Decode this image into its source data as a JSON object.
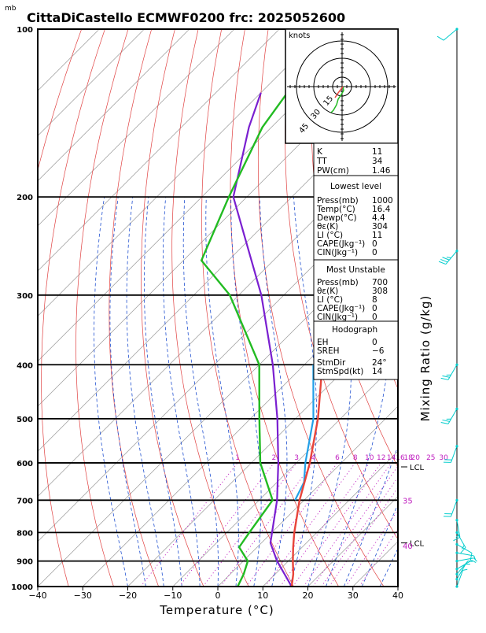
{
  "header": {
    "units_label": "mb",
    "title": "CittaDiCastello ECMWF0200 frc: 2025052600"
  },
  "chart_data": {
    "type": "skew-t",
    "xlabel": "Temperature (°C)",
    "ylabel_right": "Mixing Ratio (g/kg)",
    "x_ticks": [
      "−40",
      "−30",
      "−20",
      "−10",
      "0",
      "10",
      "20",
      "30",
      "40"
    ],
    "x_tick_values": [
      -40,
      -30,
      -20,
      -10,
      0,
      10,
      20,
      30,
      40
    ],
    "p_ticks": [
      "100",
      "200",
      "300",
      "400",
      "500",
      "600",
      "700",
      "800",
      "900",
      "1000"
    ],
    "p_tick_values": [
      100,
      200,
      300,
      400,
      500,
      600,
      700,
      800,
      900,
      1000
    ],
    "xlim": [
      -40,
      40
    ],
    "plim": [
      1000,
      100
    ],
    "mixing_ratio_labels": [
      "1",
      "2",
      "3",
      "4",
      "6",
      "8",
      "10",
      "12",
      "14",
      "16",
      "18",
      "20",
      "25",
      "30"
    ],
    "mixing_ratio_values": [
      1,
      2,
      3,
      4,
      6,
      8,
      10,
      12,
      14,
      16,
      18,
      20,
      25,
      30
    ],
    "temperature_profile": [
      {
        "p": 1000,
        "t": 16.4
      },
      {
        "p": 950,
        "t": 14
      },
      {
        "p": 900,
        "t": 11
      },
      {
        "p": 850,
        "t": 8
      },
      {
        "p": 800,
        "t": 5
      },
      {
        "p": 700,
        "t": -1
      },
      {
        "p": 600,
        "t": -7
      },
      {
        "p": 500,
        "t": -15
      },
      {
        "p": 400,
        "t": -26
      },
      {
        "p": 300,
        "t": -40
      },
      {
        "p": 250,
        "t": -50
      },
      {
        "p": 200,
        "t": -52
      },
      {
        "p": 150,
        "t": -54
      },
      {
        "p": 100,
        "t": -57
      }
    ],
    "dewpoint_profile": [
      {
        "p": 1000,
        "t": 4.4
      },
      {
        "p": 950,
        "t": 3
      },
      {
        "p": 900,
        "t": 1
      },
      {
        "p": 850,
        "t": -4
      },
      {
        "p": 800,
        "t": -5
      },
      {
        "p": 700,
        "t": -7
      },
      {
        "p": 600,
        "t": -18
      },
      {
        "p": 500,
        "t": -28
      },
      {
        "p": 400,
        "t": -40
      },
      {
        "p": 300,
        "t": -62
      },
      {
        "p": 260,
        "t": -76
      },
      {
        "p": 200,
        "t": -84
      },
      {
        "p": 150,
        "t": -92
      },
      {
        "p": 100,
        "t": -98
      }
    ],
    "parcel_profile": [
      {
        "p": 1000,
        "t": 16.4
      },
      {
        "p": 900,
        "t": 7.5
      },
      {
        "p": 835,
        "t": 2
      },
      {
        "p": 700,
        "t": -6
      },
      {
        "p": 600,
        "t": -14
      },
      {
        "p": 500,
        "t": -24
      },
      {
        "p": 400,
        "t": -37
      },
      {
        "p": 300,
        "t": -55
      },
      {
        "p": 200,
        "t": -83
      },
      {
        "p": 150,
        "t": -95
      },
      {
        "p": 130,
        "t": -100
      }
    ],
    "parcel_mu_profile": [
      {
        "p": 700,
        "t": -2
      },
      {
        "p": 650,
        "t": -4
      },
      {
        "p": 600,
        "t": -8
      },
      {
        "p": 500,
        "t": -16
      },
      {
        "p": 400,
        "t": -28
      }
    ],
    "lcl_labels": [
      {
        "p": 610,
        "label": "LCL"
      },
      {
        "p": 835,
        "label": "LCL"
      }
    ],
    "side_labels": [
      {
        "p": 700,
        "label": "35"
      },
      {
        "p": 845,
        "label": "40"
      }
    ],
    "wind_barbs": [
      {
        "p": 1000,
        "dir": 20,
        "spd": 5
      },
      {
        "p": 970,
        "dir": 30,
        "spd": 5
      },
      {
        "p": 950,
        "dir": 40,
        "spd": 5
      },
      {
        "p": 930,
        "dir": 60,
        "spd": 5
      },
      {
        "p": 900,
        "dir": 80,
        "spd": 5
      },
      {
        "p": 870,
        "dir": 100,
        "spd": 5
      },
      {
        "p": 840,
        "dir": 120,
        "spd": 10
      },
      {
        "p": 800,
        "dir": 150,
        "spd": 15
      },
      {
        "p": 760,
        "dir": 170,
        "spd": 15
      },
      {
        "p": 700,
        "dir": 200,
        "spd": 20
      },
      {
        "p": 560,
        "dir": 200,
        "spd": 20
      },
      {
        "p": 480,
        "dir": 210,
        "spd": 25
      },
      {
        "p": 400,
        "dir": 210,
        "spd": 25
      },
      {
        "p": 250,
        "dir": 220,
        "spd": 35
      },
      {
        "p": 100,
        "dir": 230,
        "spd": 10
      }
    ]
  },
  "hodograph": {
    "units": "knots",
    "ring_labels": [
      "15",
      "30",
      "45"
    ]
  },
  "indices": {
    "top": [
      {
        "label": "K",
        "value": "11"
      },
      {
        "label": "TT",
        "value": "34"
      },
      {
        "label": "PW(cm)",
        "value": "1.46"
      }
    ],
    "lowest": {
      "heading": "Lowest level",
      "rows": [
        {
          "label": "Press(mb)",
          "value": "1000"
        },
        {
          "label": "Temp(°C)",
          "value": "16.4"
        },
        {
          "label": "Dewp(°C)",
          "value": "4.4"
        },
        {
          "label": "θε(K)",
          "value": "304"
        },
        {
          "label": "LI (°C)",
          "value": "11"
        },
        {
          "label": "CAPE(Jkg⁻¹)",
          "value": "0"
        },
        {
          "label": "CIN(Jkg⁻¹)",
          "value": "0"
        }
      ]
    },
    "unstable": {
      "heading": "Most Unstable",
      "rows": [
        {
          "label": "Press(mb)",
          "value": "700"
        },
        {
          "label": "θε(K)",
          "value": "308"
        },
        {
          "label": "LI (°C)",
          "value": "8"
        },
        {
          "label": "CAPE(Jkg⁻¹)",
          "value": "0"
        },
        {
          "label": "CIN(Jkg⁻¹)",
          "value": "0"
        }
      ]
    },
    "hodo": {
      "heading": "Hodograph",
      "rows": [
        {
          "label": "EH",
          "value": "0"
        },
        {
          "label": "SREH",
          "value": "−6"
        },
        {
          "label": "StmDir",
          "value": "24°"
        },
        {
          "label": "StmSpd(kt)",
          "value": "14"
        }
      ]
    }
  },
  "colors": {
    "temperature": "#e8443a",
    "dewpoint": "#22bb22",
    "parcel": "#7a1fd0",
    "parcel_mu": "#22a0e8",
    "isotherm": "#999999",
    "dry_adiabat": "#e04040",
    "moist_adiabat": "#2050d0",
    "mixing_ratio": "#c020c0",
    "barb": "#00cccc"
  }
}
